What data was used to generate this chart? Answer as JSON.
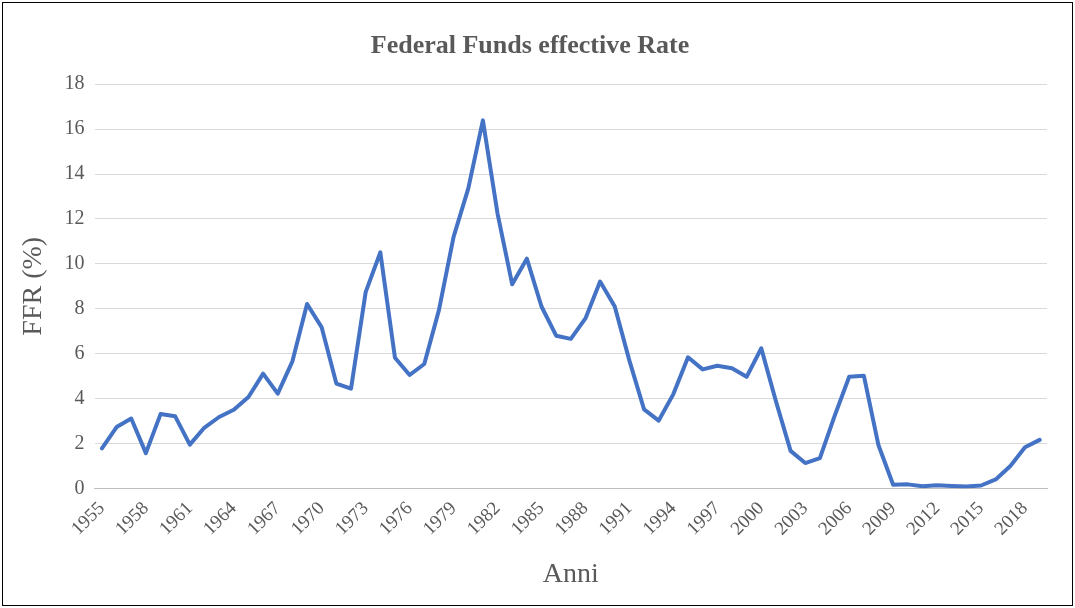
{
  "chart_data": {
    "type": "line",
    "title": "Federal Funds effective Rate",
    "xlabel": "Anni",
    "ylabel": "FFR (%)",
    "categories": [
      "1955",
      null,
      null,
      "1958",
      null,
      null,
      "1961",
      null,
      null,
      "1964",
      null,
      null,
      "1967",
      null,
      null,
      "1970",
      null,
      null,
      "1973",
      null,
      null,
      "1976",
      null,
      null,
      "1979",
      null,
      null,
      "1982",
      null,
      null,
      "1985",
      null,
      null,
      "1988",
      null,
      null,
      "1991",
      null,
      null,
      "1994",
      null,
      null,
      "1997",
      null,
      null,
      "2000",
      null,
      null,
      "2003",
      null,
      null,
      "2006",
      null,
      null,
      "2009",
      null,
      null,
      "2012",
      null,
      null,
      "2015",
      null,
      null,
      "2018",
      null
    ],
    "series": [
      {
        "color": "#4472c4",
        "values": [
          1.78,
          2.73,
          3.11,
          1.57,
          3.31,
          3.21,
          1.95,
          2.71,
          3.18,
          3.5,
          4.07,
          5.11,
          4.22,
          5.66,
          8.21,
          7.17,
          4.67,
          4.44,
          8.74,
          10.51,
          5.82,
          5.05,
          5.54,
          7.94,
          11.2,
          13.35,
          16.39,
          12.24,
          9.09,
          10.23,
          8.1,
          6.8,
          6.66,
          7.57,
          9.21,
          8.1,
          5.69,
          3.52,
          3.02,
          4.2,
          5.84,
          5.3,
          5.46,
          5.35,
          4.97,
          6.24,
          3.88,
          1.67,
          1.13,
          1.35,
          3.22,
          4.97,
          5.02,
          1.92,
          0.16,
          0.18,
          0.1,
          0.14,
          0.11,
          0.09,
          0.13,
          0.4,
          1.0,
          1.83,
          2.16
        ]
      }
    ],
    "ylim": [
      0,
      18
    ],
    "yticks": [
      0,
      2,
      4,
      6,
      8,
      10,
      12,
      14,
      16,
      18
    ],
    "grid": "y",
    "legend": false,
    "marker": "none",
    "line_style": "solid"
  }
}
